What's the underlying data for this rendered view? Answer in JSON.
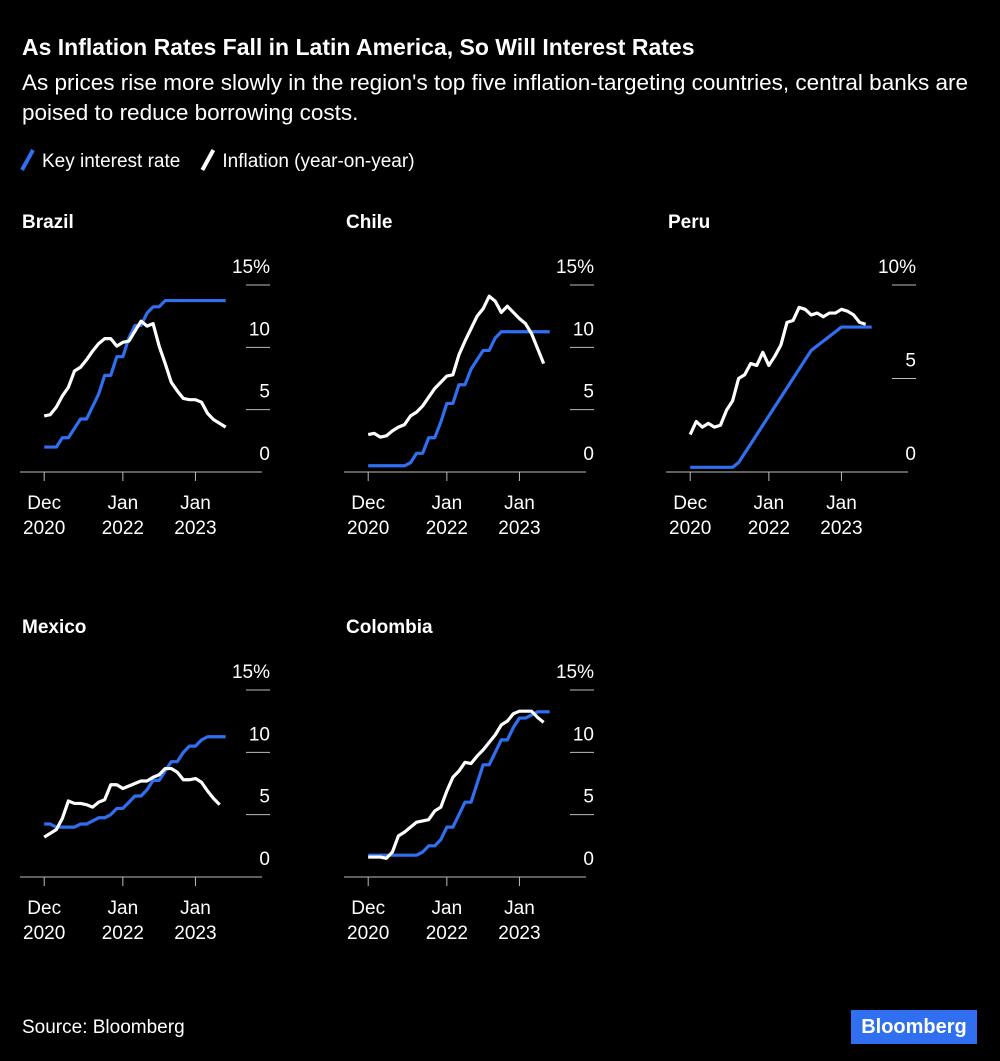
{
  "title": "As Inflation Rates Fall in Latin America, So Will Interest Rates",
  "subtitle": "As prices rise more slowly in the region's top five inflation-targeting countries, central banks are poised to reduce borrowing costs.",
  "source": "Source: Bloomberg",
  "logo": "Bloomberg",
  "chart_data": [
    {
      "type": "line",
      "title": "Brazil",
      "x": [
        "2020-12",
        "2021-01",
        "2021-02",
        "2021-03",
        "2021-04",
        "2021-05",
        "2021-06",
        "2021-07",
        "2021-08",
        "2021-09",
        "2021-10",
        "2021-11",
        "2021-12",
        "2022-01",
        "2022-02",
        "2022-03",
        "2022-04",
        "2022-05",
        "2022-06",
        "2022-07",
        "2022-08",
        "2022-09",
        "2022-10",
        "2022-11",
        "2022-12",
        "2023-01",
        "2023-02",
        "2023-03",
        "2023-04",
        "2023-05",
        "2023-06"
      ],
      "series": [
        {
          "name": "Key interest rate",
          "color": "#2f6ff0",
          "values": [
            2,
            2,
            2,
            2.75,
            2.75,
            3.5,
            4.25,
            4.25,
            5.25,
            6.25,
            7.75,
            7.75,
            9.25,
            9.25,
            10.75,
            11.75,
            11.75,
            12.75,
            13.25,
            13.25,
            13.75,
            13.75,
            13.75,
            13.75,
            13.75,
            13.75,
            13.75,
            13.75,
            13.75,
            13.75,
            13.75
          ]
        },
        {
          "name": "Inflation (year-on-year)",
          "color": "#ffffff",
          "values": [
            4.5,
            4.6,
            5.2,
            6.1,
            6.8,
            8.1,
            8.4,
            9,
            9.7,
            10.3,
            10.7,
            10.7,
            10.1,
            10.4,
            10.5,
            11.3,
            12.1,
            11.7,
            11.9,
            10.1,
            8.7,
            7.2,
            6.5,
            5.9,
            5.8,
            5.8,
            5.6,
            4.7,
            4.2,
            3.9,
            3.6
          ]
        }
      ],
      "xlim": [
        "2020-08",
        "2023-12"
      ],
      "xticks": [
        {
          "value": "2020-12",
          "label": [
            "Dec",
            "2020"
          ]
        },
        {
          "value": "2022-01",
          "label": [
            "Jan",
            "2022"
          ]
        },
        {
          "value": "2023-01",
          "label": [
            "Jan",
            "2023"
          ]
        }
      ],
      "ylim": [
        0,
        15
      ],
      "yticks": [
        0,
        5,
        10,
        {
          "value": 15,
          "label": "15%"
        }
      ]
    },
    {
      "type": "line",
      "title": "Chile",
      "x": [
        "2020-12",
        "2021-01",
        "2021-02",
        "2021-03",
        "2021-04",
        "2021-05",
        "2021-06",
        "2021-07",
        "2021-08",
        "2021-09",
        "2021-10",
        "2021-11",
        "2021-12",
        "2022-01",
        "2022-02",
        "2022-03",
        "2022-04",
        "2022-05",
        "2022-06",
        "2022-07",
        "2022-08",
        "2022-09",
        "2022-10",
        "2022-11",
        "2022-12",
        "2023-01",
        "2023-02",
        "2023-03",
        "2023-04",
        "2023-05",
        "2023-06"
      ],
      "series": [
        {
          "color": "#2f6ff0",
          "values": [
            0.5,
            0.5,
            0.5,
            0.5,
            0.5,
            0.5,
            0.5,
            0.75,
            1.5,
            1.5,
            2.75,
            2.75,
            4,
            5.5,
            5.5,
            7,
            7,
            8.25,
            9,
            9.75,
            9.75,
            10.75,
            11.25,
            11.25,
            11.25,
            11.25,
            11.25,
            11.25,
            11.25,
            11.25,
            11.25
          ]
        },
        {
          "color": "#ffffff",
          "values": [
            3,
            3.1,
            2.8,
            2.9,
            3.3,
            3.6,
            3.8,
            4.5,
            4.8,
            5.3,
            6,
            6.7,
            7.2,
            7.7,
            7.8,
            9.4,
            10.5,
            11.5,
            12.5,
            13.1,
            14.1,
            13.7,
            12.8,
            13.3,
            12.8,
            12.3,
            11.9,
            11.1,
            9.9,
            8.7,
            null
          ]
        }
      ],
      "xlim": [
        "2020-08",
        "2023-12"
      ],
      "xticks": [
        {
          "value": "2020-12",
          "label": [
            "Dec",
            "2020"
          ]
        },
        {
          "value": "2022-01",
          "label": [
            "Jan",
            "2022"
          ]
        },
        {
          "value": "2023-01",
          "label": [
            "Jan",
            "2023"
          ]
        }
      ],
      "ylim": [
        0,
        15
      ],
      "yticks": [
        0,
        5,
        10,
        {
          "value": 15,
          "label": "15%"
        }
      ]
    },
    {
      "type": "line",
      "title": "Peru",
      "x": [
        "2020-12",
        "2021-01",
        "2021-02",
        "2021-03",
        "2021-04",
        "2021-05",
        "2021-06",
        "2021-07",
        "2021-08",
        "2021-09",
        "2021-10",
        "2021-11",
        "2021-12",
        "2022-01",
        "2022-02",
        "2022-03",
        "2022-04",
        "2022-05",
        "2022-06",
        "2022-07",
        "2022-08",
        "2022-09",
        "2022-10",
        "2022-11",
        "2022-12",
        "2023-01",
        "2023-02",
        "2023-03",
        "2023-04",
        "2023-05",
        "2023-06"
      ],
      "series": [
        {
          "color": "#2f6ff0",
          "values": [
            0.25,
            0.25,
            0.25,
            0.25,
            0.25,
            0.25,
            0.25,
            0.25,
            0.5,
            1,
            1.5,
            2,
            2.5,
            3,
            3.5,
            4,
            4.5,
            5,
            5.5,
            6,
            6.5,
            6.75,
            7,
            7.25,
            7.5,
            7.75,
            7.75,
            7.75,
            7.75,
            7.75,
            7.75
          ]
        },
        {
          "color": "#ffffff",
          "values": [
            2,
            2.7,
            2.4,
            2.6,
            2.4,
            2.5,
            3.3,
            3.8,
            5,
            5.2,
            5.8,
            5.7,
            6.4,
            5.7,
            6.2,
            6.8,
            8,
            8.1,
            8.8,
            8.7,
            8.4,
            8.5,
            8.3,
            8.5,
            8.5,
            8.7,
            8.6,
            8.4,
            8,
            7.9,
            null
          ]
        }
      ],
      "xlim": [
        "2020-08",
        "2023-12"
      ],
      "xticks": [
        {
          "value": "2020-12",
          "label": [
            "Dec",
            "2020"
          ]
        },
        {
          "value": "2022-01",
          "label": [
            "Jan",
            "2022"
          ]
        },
        {
          "value": "2023-01",
          "label": [
            "Jan",
            "2023"
          ]
        }
      ],
      "ylim": [
        0,
        10
      ],
      "yticks": [
        0,
        5,
        {
          "value": 10,
          "label": "10%"
        }
      ]
    },
    {
      "type": "line",
      "title": "Mexico",
      "x": [
        "2020-12",
        "2021-01",
        "2021-02",
        "2021-03",
        "2021-04",
        "2021-05",
        "2021-06",
        "2021-07",
        "2021-08",
        "2021-09",
        "2021-10",
        "2021-11",
        "2021-12",
        "2022-01",
        "2022-02",
        "2022-03",
        "2022-04",
        "2022-05",
        "2022-06",
        "2022-07",
        "2022-08",
        "2022-09",
        "2022-10",
        "2022-11",
        "2022-12",
        "2023-01",
        "2023-02",
        "2023-03",
        "2023-04",
        "2023-05",
        "2023-06"
      ],
      "series": [
        {
          "color": "#2f6ff0",
          "values": [
            4.25,
            4.25,
            4,
            4,
            4,
            4,
            4.25,
            4.25,
            4.5,
            4.75,
            4.75,
            5,
            5.5,
            5.5,
            6,
            6.5,
            6.5,
            7,
            7.75,
            7.75,
            8.5,
            9.25,
            9.25,
            10,
            10.5,
            10.5,
            11,
            11.25,
            11.25,
            11.25,
            11.25
          ]
        },
        {
          "color": "#ffffff",
          "values": [
            3.2,
            3.5,
            3.8,
            4.7,
            6.1,
            5.9,
            5.9,
            5.8,
            5.6,
            6,
            6.2,
            7.4,
            7.4,
            7.1,
            7.3,
            7.5,
            7.7,
            7.7,
            8,
            8.2,
            8.7,
            8.7,
            8.4,
            7.8,
            7.8,
            7.9,
            7.6,
            6.9,
            6.3,
            5.8,
            null
          ]
        }
      ],
      "xlim": [
        "2020-08",
        "2023-12"
      ],
      "xticks": [
        {
          "value": "2020-12",
          "label": [
            "Dec",
            "2020"
          ]
        },
        {
          "value": "2022-01",
          "label": [
            "Jan",
            "2022"
          ]
        },
        {
          "value": "2023-01",
          "label": [
            "Jan",
            "2023"
          ]
        }
      ],
      "ylim": [
        0,
        15
      ],
      "yticks": [
        0,
        5,
        10,
        {
          "value": 15,
          "label": "15%"
        }
      ]
    },
    {
      "type": "line",
      "title": "Colombia",
      "x": [
        "2020-12",
        "2021-01",
        "2021-02",
        "2021-03",
        "2021-04",
        "2021-05",
        "2021-06",
        "2021-07",
        "2021-08",
        "2021-09",
        "2021-10",
        "2021-11",
        "2021-12",
        "2022-01",
        "2022-02",
        "2022-03",
        "2022-04",
        "2022-05",
        "2022-06",
        "2022-07",
        "2022-08",
        "2022-09",
        "2022-10",
        "2022-11",
        "2022-12",
        "2023-01",
        "2023-02",
        "2023-03",
        "2023-04",
        "2023-05",
        "2023-06"
      ],
      "series": [
        {
          "color": "#2f6ff0",
          "values": [
            1.75,
            1.75,
            1.75,
            1.75,
            1.75,
            1.75,
            1.75,
            1.75,
            1.75,
            2,
            2.5,
            2.5,
            3,
            4,
            4,
            5,
            6,
            6,
            7.5,
            9,
            9,
            10,
            11,
            11,
            12,
            12.75,
            12.75,
            13,
            13.25,
            13.25,
            13.25
          ]
        },
        {
          "color": "#ffffff",
          "values": [
            1.6,
            1.6,
            1.6,
            1.5,
            2,
            3.3,
            3.6,
            4,
            4.4,
            4.5,
            4.6,
            5.3,
            5.6,
            6.9,
            8,
            8.5,
            9.2,
            9.1,
            9.7,
            10.2,
            10.8,
            11.4,
            12.2,
            12.5,
            13.1,
            13.3,
            13.3,
            13.3,
            12.8,
            12.4,
            null
          ]
        }
      ],
      "xlim": [
        "2020-08",
        "2023-12"
      ],
      "xticks": [
        {
          "value": "2020-12",
          "label": [
            "Dec",
            "2020"
          ]
        },
        {
          "value": "2022-01",
          "label": [
            "Jan",
            "2022"
          ]
        },
        {
          "value": "2023-01",
          "label": [
            "Jan",
            "2023"
          ]
        }
      ],
      "ylim": [
        0,
        15
      ],
      "yticks": [
        0,
        5,
        10,
        {
          "value": 15,
          "label": "15%"
        }
      ]
    }
  ]
}
